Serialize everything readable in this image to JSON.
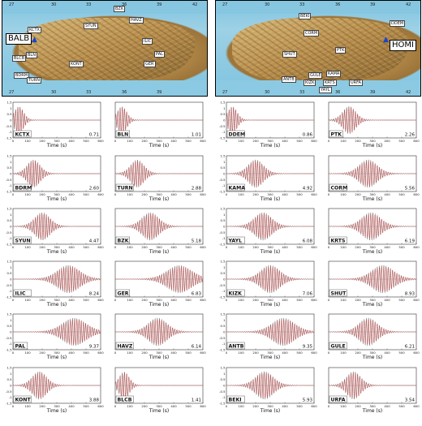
{
  "maps": [
    {
      "reference": "BALB",
      "ticks": [
        "27",
        "30",
        "33",
        "36",
        "39",
        "42"
      ],
      "bottom_ticks": [
        "27",
        "30",
        "33",
        "36",
        "39"
      ],
      "stations": [
        "KCTX",
        "BLN",
        "BLCB",
        "BDRM",
        "TURN",
        "KONT",
        "SYUN",
        "BZK",
        "HAVZ",
        "ILIC",
        "PAL",
        "GER"
      ]
    },
    {
      "reference": "HOMI",
      "ticks": [
        "27",
        "30",
        "33",
        "36",
        "39",
        "42"
      ],
      "bottom_ticks": [
        "27",
        "30",
        "33",
        "36",
        "39",
        "42"
      ],
      "stations": [
        "BEKI",
        "DDEM",
        "CORM",
        "PTK",
        "SHUT",
        "GULE",
        "KAMA",
        "KIZK",
        "KRTS",
        "URFA",
        "YAYL",
        "ANTB"
      ]
    }
  ],
  "chart_data": {
    "type": "line",
    "xlabel": "Time (s)",
    "xlim": [
      0,
      600
    ],
    "ylim": [
      -1.5,
      1.5
    ],
    "xticks": [
      0,
      100,
      200,
      300,
      400,
      500,
      600
    ],
    "yticks": [
      "1.5",
      "1",
      "0.5",
      "0",
      "-0.5",
      "-1",
      "-1.5"
    ],
    "series_colors": {
      "observed": "#666666",
      "synthetic": "#e03030"
    },
    "panels": [
      {
        "station": "KCTX",
        "value": "0.71",
        "arrival": 40
      },
      {
        "station": "BLN",
        "value": "1.01",
        "arrival": 45
      },
      {
        "station": "DDEM",
        "value": "0.86",
        "arrival": 40
      },
      {
        "station": "PTK",
        "value": "2.26",
        "arrival": 140
      },
      {
        "station": "BDRM",
        "value": "2.60",
        "arrival": 140
      },
      {
        "station": "TURN",
        "value": "2.88",
        "arrival": 150
      },
      {
        "station": "KAMA",
        "value": "4.92",
        "arrival": 200
      },
      {
        "station": "CORM",
        "value": "5.56",
        "arrival": 270
      },
      {
        "station": "SYUN",
        "value": "4.47",
        "arrival": 200
      },
      {
        "station": "BZK",
        "value": "5.18",
        "arrival": 240
      },
      {
        "station": "YAYL",
        "value": "6.08",
        "arrival": 250
      },
      {
        "station": "KRTS",
        "value": "6.19",
        "arrival": 290
      },
      {
        "station": "ILIC",
        "value": "8.24",
        "arrival": 380
      },
      {
        "station": "GER",
        "value": "6.83",
        "arrival": 440
      },
      {
        "station": "KIZK",
        "value": "7.06",
        "arrival": 300
      },
      {
        "station": "SHUT",
        "value": "8.93",
        "arrival": 370
      },
      {
        "station": "PAL",
        "value": "9.37",
        "arrival": 420
      },
      {
        "station": "HAVZ",
        "value": "6.14",
        "arrival": 290
      },
      {
        "station": "ANTB",
        "value": "9.35",
        "arrival": 390
      },
      {
        "station": "GULE",
        "value": "6.21",
        "arrival": 270
      },
      {
        "station": "KONT",
        "value": "3.88",
        "arrival": 180
      },
      {
        "station": "BLCB",
        "value": "1.41",
        "arrival": 60
      },
      {
        "station": "BEKI",
        "value": "5.93",
        "arrival": 260
      },
      {
        "station": "URFA",
        "value": "3.54",
        "arrival": 170
      }
    ]
  }
}
